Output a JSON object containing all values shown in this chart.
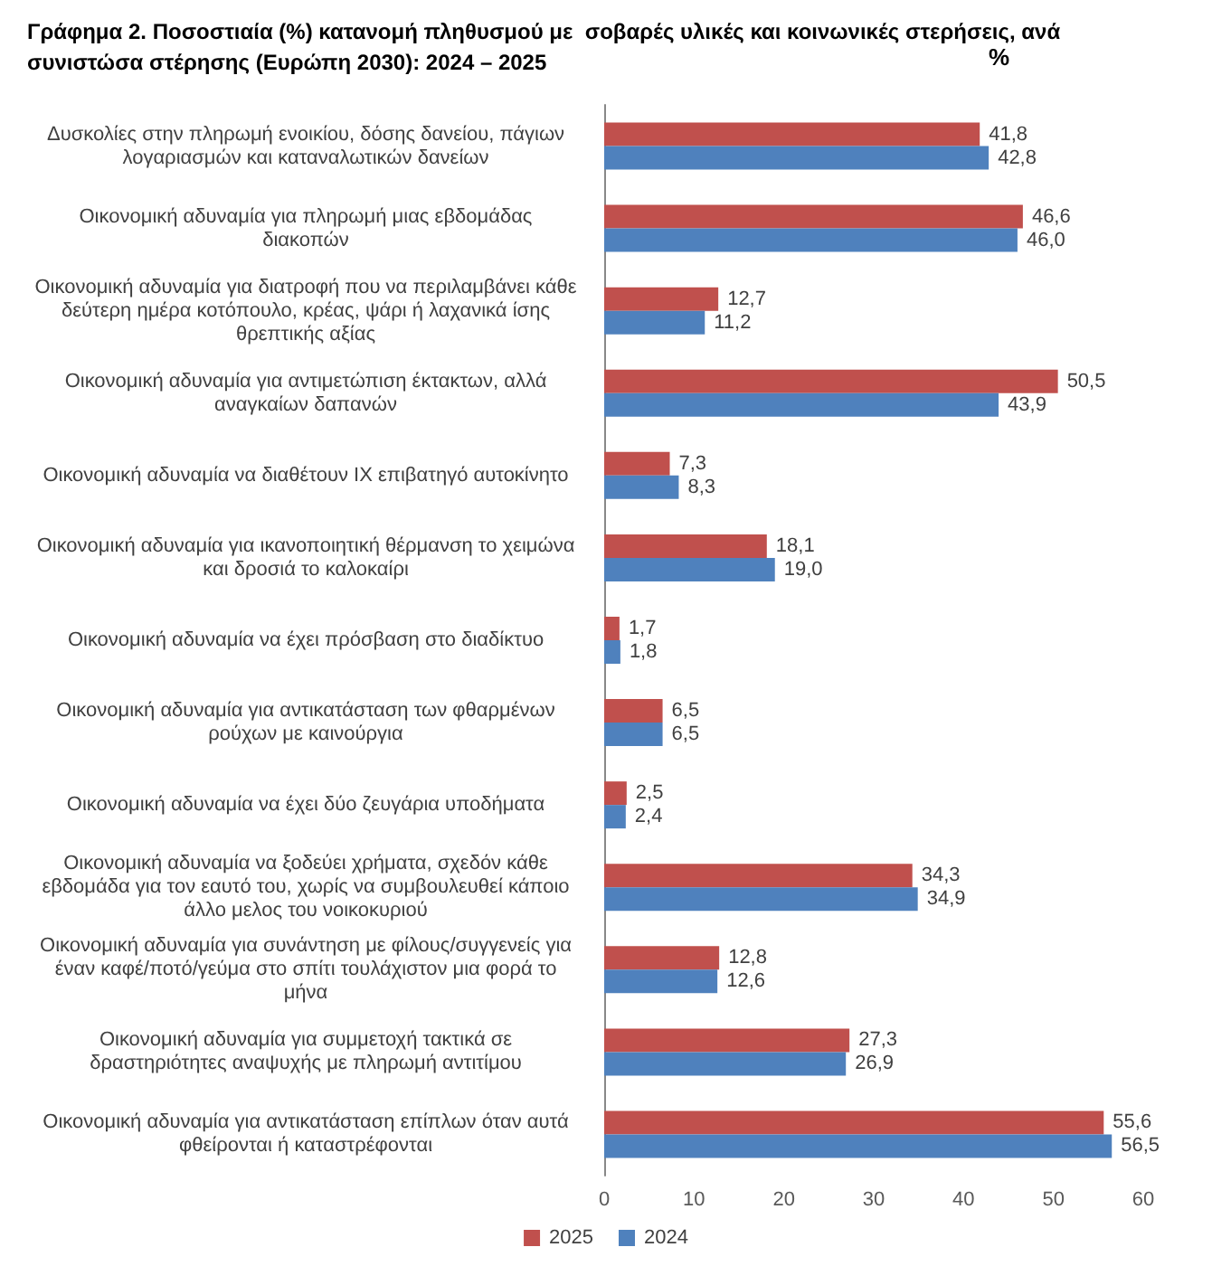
{
  "chart_data": {
    "type": "bar",
    "orientation": "horizontal",
    "title": "Γράφημα 2. Ποσοστιαία (%) κατανομή πληθυσμού με  σοβαρές υλικές και κοινωνικές στερήσεις, ανά συνιστώσα στέρησης (Ευρώπη 2030): 2024 – 2025",
    "annotations": [
      "%"
    ],
    "categories": [
      "Δυσκολίες στην πληρωμή ενοικίου, δόσης δανείου, πάγιων λογαριασμών και καταναλωτικών δανείων",
      "Οικονομική αδυναμία για πληρωμή μιας εβδομάδας διακοπών",
      "Οικονομική αδυναμία για διατροφή που να περιλαμβάνει κάθε δεύτερη ημέρα κοτόπουλο, κρέας, ψάρι ή λαχανικά ίσης θρεπτικής αξίας",
      "Οικονομική αδυναμία για αντιμετώπιση έκτακτων, αλλά αναγκαίων δαπανών",
      "Οικονομική αδυναμία να διαθέτουν ΙΧ επιβατηγό αυτοκίνητο",
      "Οικονομική αδυναμία για ικανοποιητική θέρμανση το χειμώνα και δροσιά το καλοκαίρι",
      "Οικονομική αδυναμία να έχει πρόσβαση στο διαδίκτυο",
      "Οικονομική αδυναμία για αντικατάσταση των φθαρμένων ρούχων με καινούργια",
      "Οικονομική αδυναμία να έχει δύο ζευγάρια υποδήματα",
      "Οικονομική αδυναμία να ξοδεύει χρήματα, σχεδόν κάθε εβδομάδα για τον εαυτό του, χωρίς να συμβουλευθεί κάποιο άλλο μελος του νοικοκυριού",
      "Οικονομική αδυναμία για συνάντηση με φίλους/συγγενείς για έναν καφέ/ποτό/γεύμα στο σπίτι τουλάχιστον μια φορά το μήνα",
      "Οικονομική αδυναμία για συμμετοχή τακτικά σε δραστηριότητες αναψυχής με πληρωμή αντιτίμου",
      "Οικονομική αδυναμία για αντικατάσταση επίπλων όταν αυτά φθείρονται ή καταστρέφονται"
    ],
    "series": [
      {
        "name": "2025",
        "color": "#c0504d",
        "values": [
          41.8,
          46.6,
          12.7,
          50.5,
          7.3,
          18.1,
          1.7,
          6.5,
          2.5,
          34.3,
          12.8,
          27.3,
          55.6
        ],
        "value_labels": [
          "41,8",
          "46,6",
          "12,7",
          "50,5",
          "7,3",
          "18,1",
          "1,7",
          "6,5",
          "2,5",
          "34,3",
          "12,8",
          "27,3",
          "55,6"
        ]
      },
      {
        "name": "2024",
        "color": "#4f81bd",
        "values": [
          42.8,
          46.0,
          11.2,
          43.9,
          8.3,
          19.0,
          1.8,
          6.5,
          2.4,
          34.9,
          12.6,
          26.9,
          56.5
        ],
        "value_labels": [
          "42,8",
          "46,0",
          "11,2",
          "43,9",
          "8,3",
          "19,0",
          "1,8",
          "6,5",
          "2,4",
          "34,9",
          "12,6",
          "26,9",
          "56,5"
        ]
      }
    ],
    "xlim": [
      0,
      60
    ],
    "xticks": [
      0,
      10,
      20,
      30,
      40,
      50,
      60
    ],
    "legend": "bottom",
    "grid": false
  }
}
